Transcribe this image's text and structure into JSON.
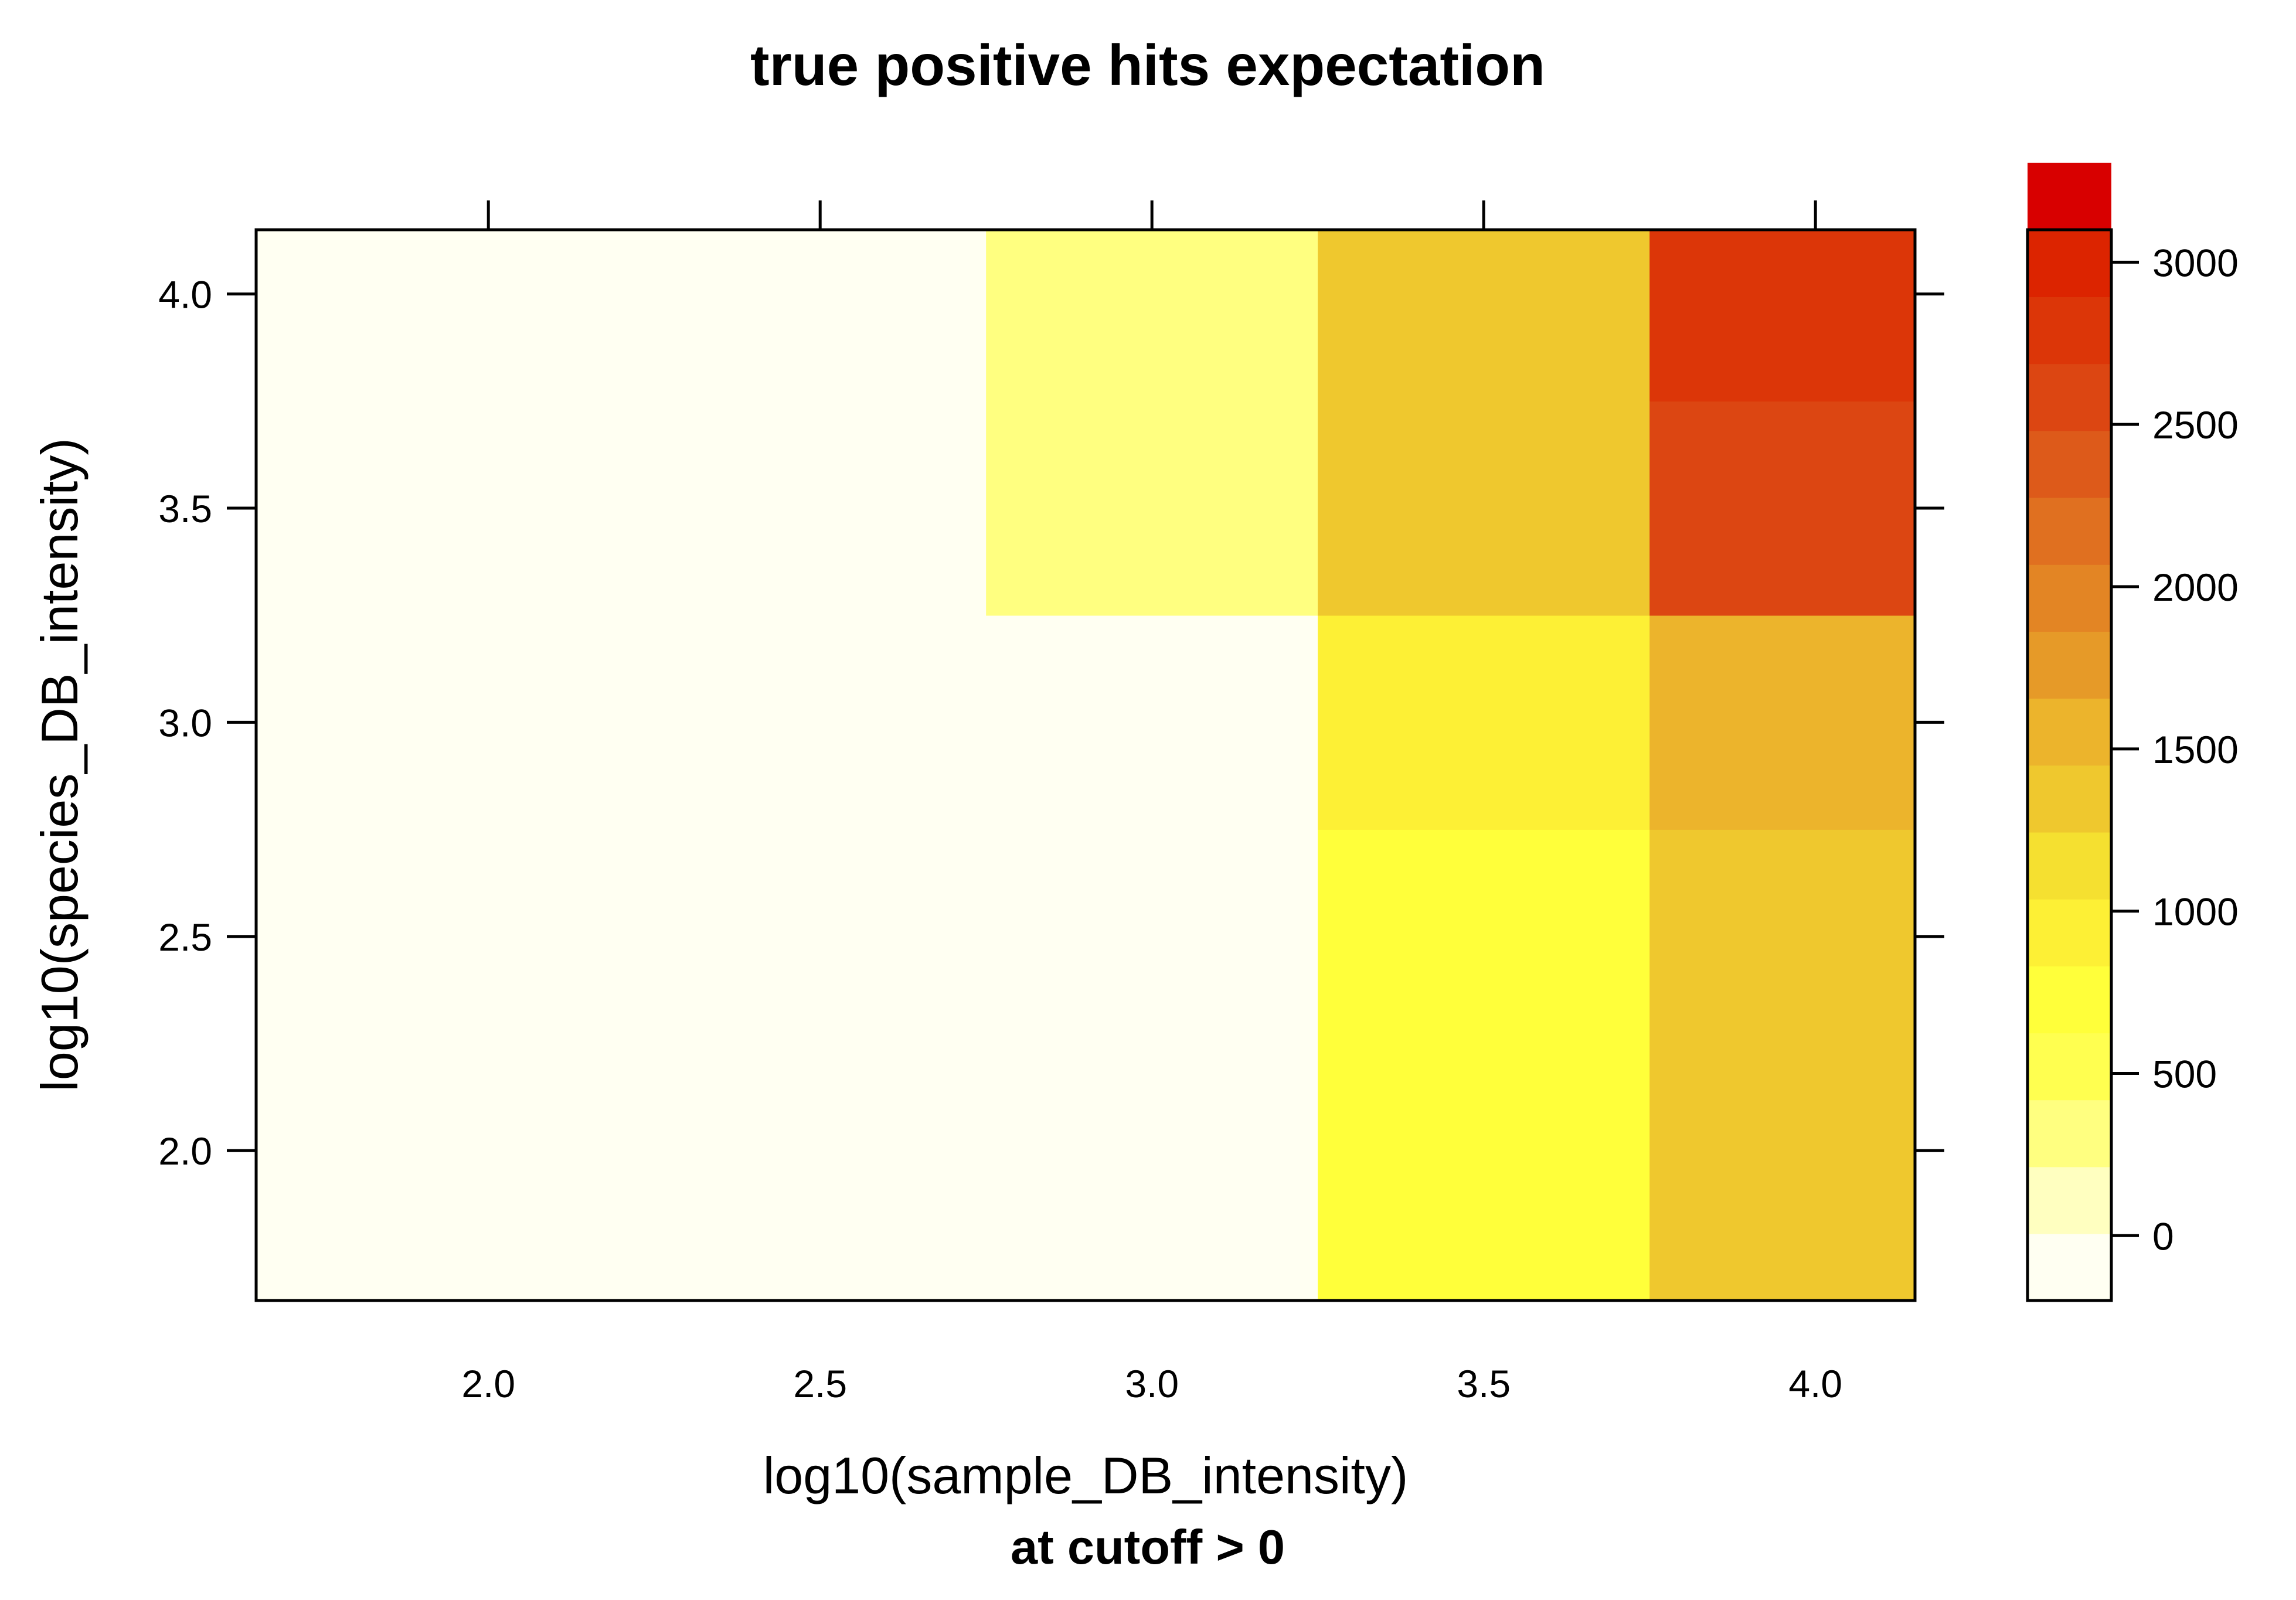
{
  "chart_data": {
    "type": "heatmap",
    "title": "true positive hits expectation",
    "subtitle": "at cutoff > 0",
    "xlabel": "log10(sample_DB_intensity)",
    "ylabel": "log10(species_DB_intensity)",
    "x_ticks": [
      "2.0",
      "2.5",
      "3.0",
      "3.5",
      "4.0"
    ],
    "y_ticks": [
      "2.0",
      "2.5",
      "3.0",
      "3.5",
      "4.0"
    ],
    "xlim": [
      1.65,
      4.15
    ],
    "ylim": [
      1.65,
      4.15
    ],
    "x_centers": [
      2.0,
      2.5,
      3.0,
      3.5,
      4.0
    ],
    "y_centers": [
      2.0,
      2.5,
      3.0,
      3.5,
      4.0
    ],
    "cells": [
      [
        0,
        0,
        0,
        700,
        1400
      ],
      [
        0,
        0,
        0,
        700,
        1400
      ],
      [
        0,
        0,
        0,
        1000,
        1600
      ],
      [
        0,
        0,
        300,
        1400,
        2600
      ],
      [
        0,
        0,
        300,
        1400,
        2800
      ]
    ],
    "colorbar": {
      "ticks": [
        "0",
        "500",
        "1000",
        "1500",
        "2000",
        "2500",
        "3000"
      ],
      "tick_values": [
        0,
        500,
        1000,
        1500,
        2000,
        2500,
        3000
      ],
      "range": [
        -200,
        3100
      ],
      "bin_width": 206.25,
      "colors": [
        "#fffff2",
        "#ffffc0",
        "#ffff80",
        "#ffff50",
        "#ffff3a",
        "#fdf035",
        "#f5e030",
        "#efc82e",
        "#ecb42c",
        "#e69a28",
        "#e38524",
        "#e07020",
        "#dd5a1a",
        "#dc4612",
        "#dc3608",
        "#dc2400",
        "#d80000"
      ]
    },
    "grid": false,
    "legend": "colorbar-right"
  }
}
